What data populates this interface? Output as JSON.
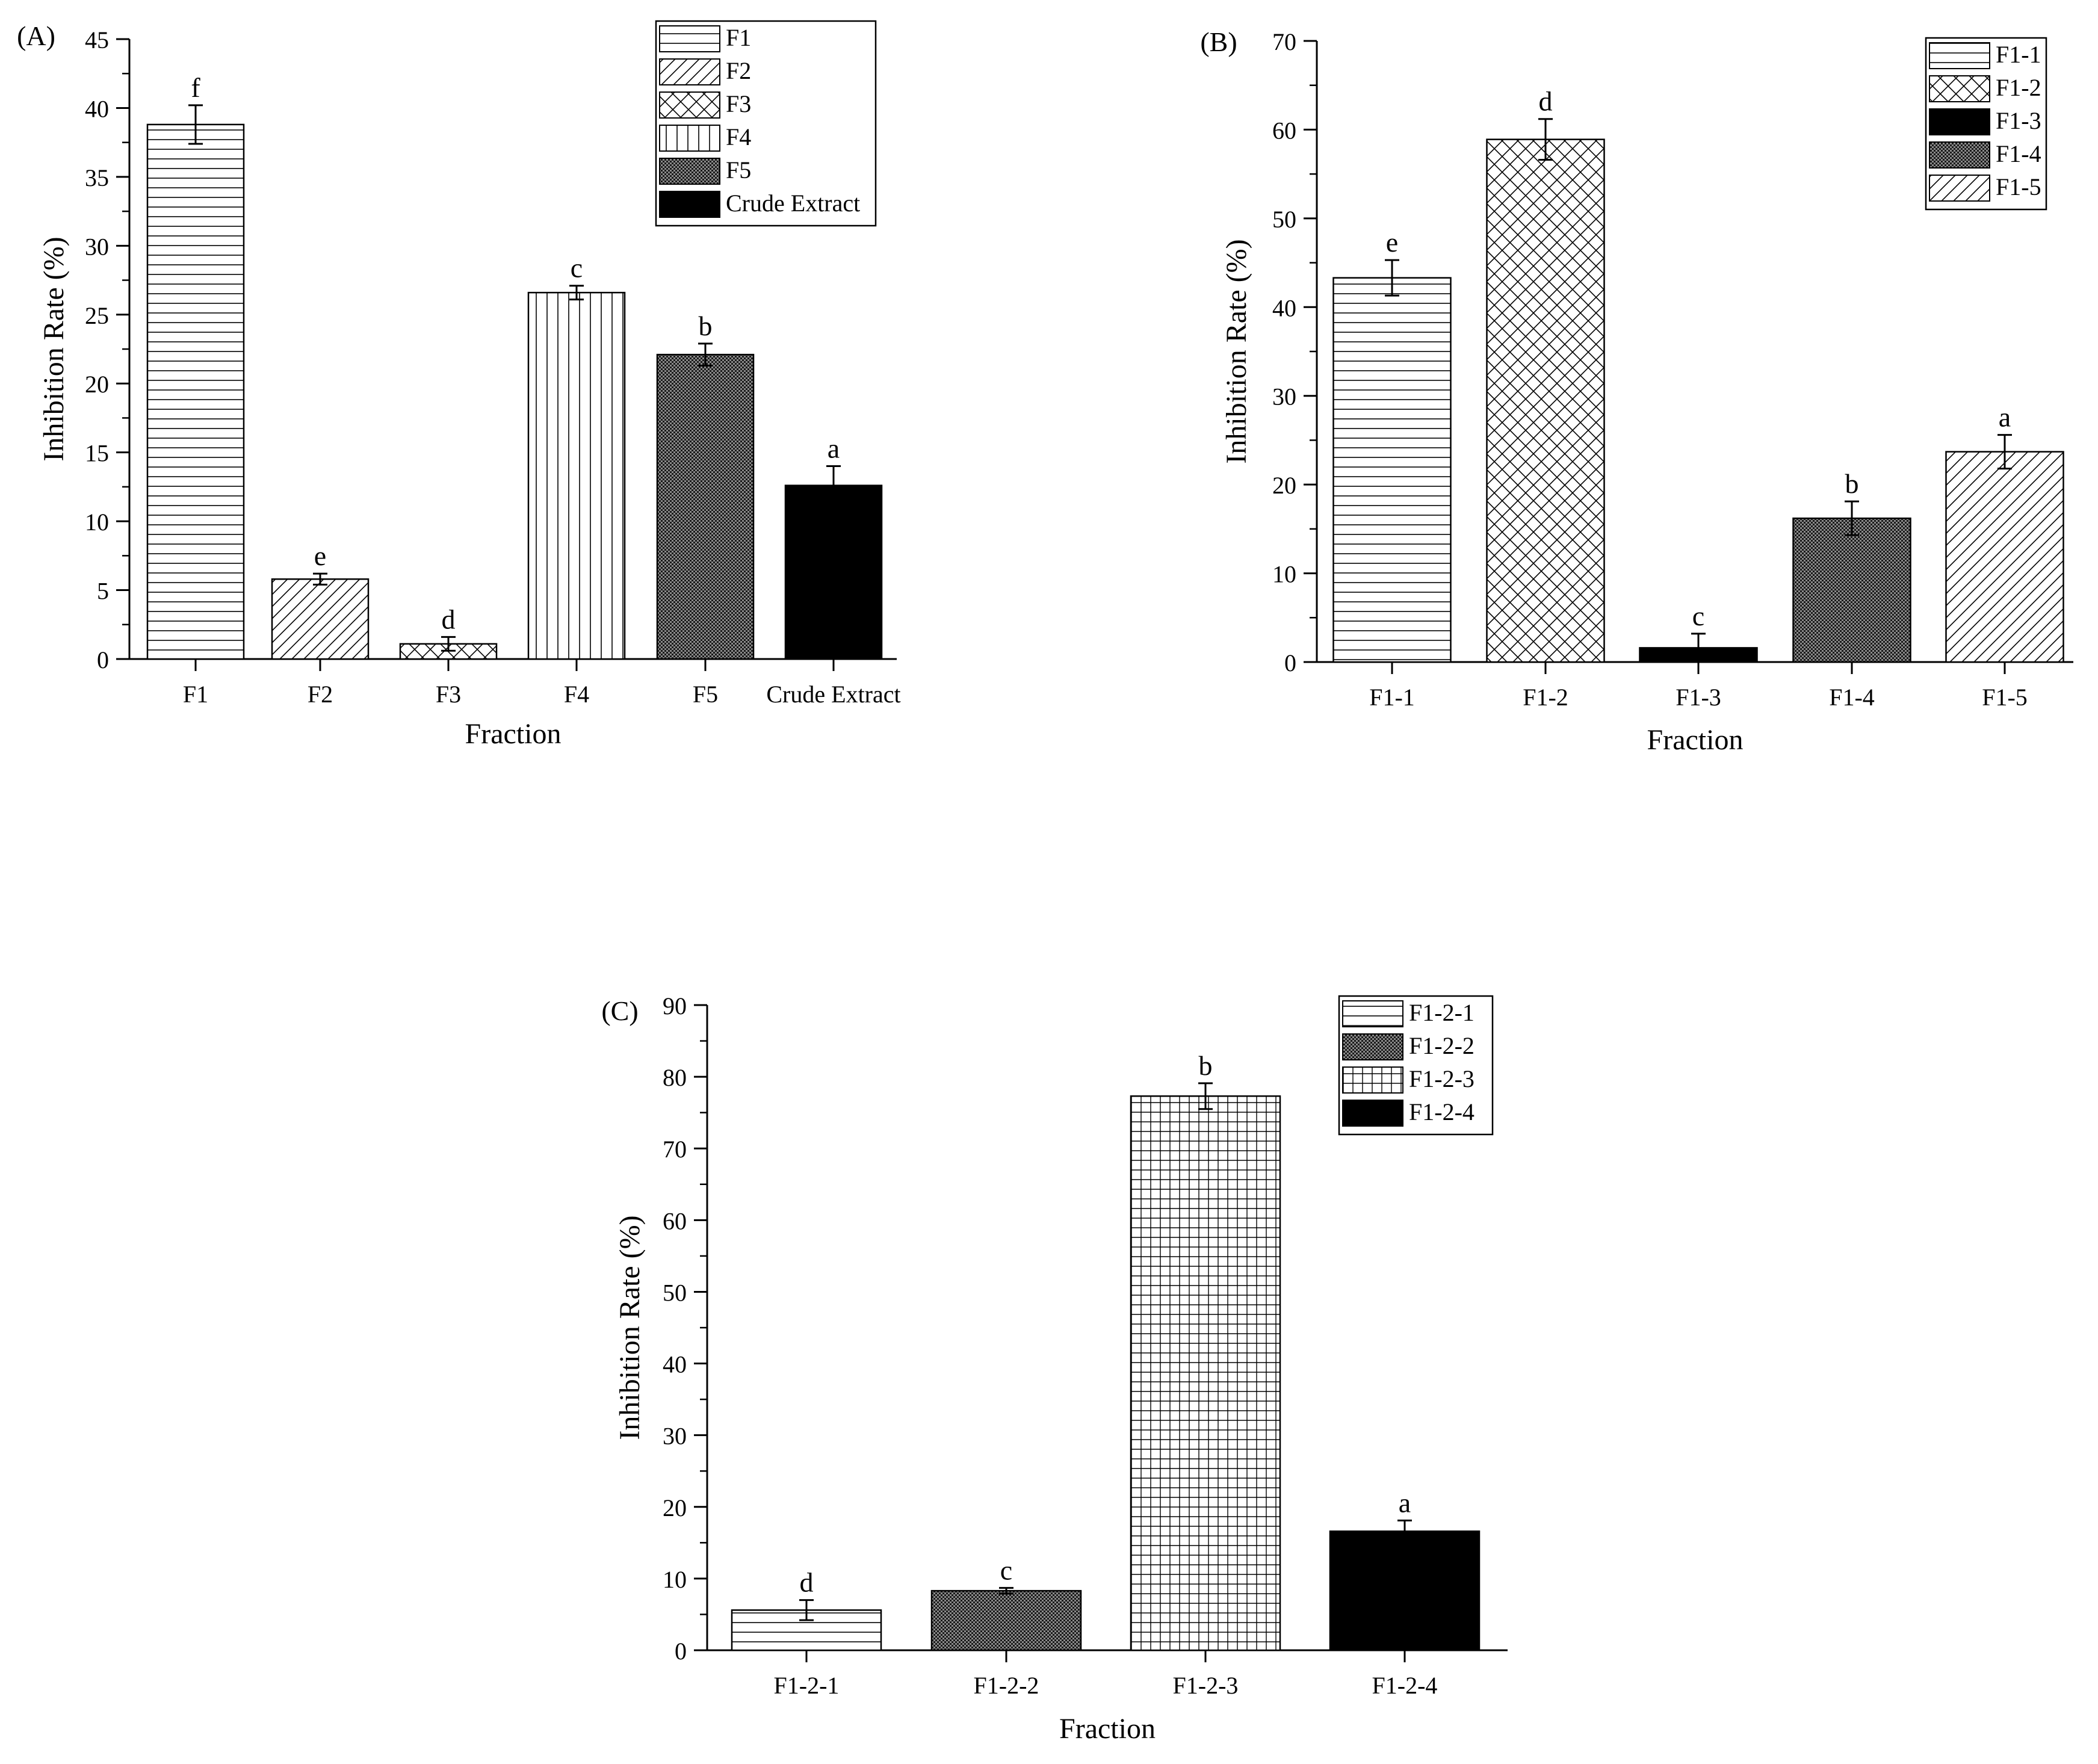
{
  "chart_data": [
    {
      "type": "bar",
      "panel_label": "(A)",
      "xlabel": "Fraction",
      "ylabel": "Inhibition Rate (%)",
      "ylim": [
        0,
        45
      ],
      "yticks": [
        "0",
        "5",
        "10",
        "15",
        "20",
        "25",
        "30",
        "35",
        "40",
        "45"
      ],
      "categories": [
        "F1",
        "F2",
        "F3",
        "F4",
        "F5",
        "Crude Extract"
      ],
      "values": [
        38.8,
        5.8,
        1.1,
        26.6,
        22.1,
        12.6
      ],
      "errors": [
        1.4,
        0.4,
        0.5,
        0.5,
        0.8,
        1.4
      ],
      "sig_letters": [
        "f",
        "e",
        "d",
        "c",
        "b",
        "a"
      ],
      "patterns": [
        "hlines",
        "diag",
        "cross",
        "vlines",
        "dots",
        "solid"
      ],
      "legend": [
        "F1",
        "F2",
        "F3",
        "F4",
        "F5",
        "Crude Extract"
      ],
      "legend_position": "top-right"
    },
    {
      "type": "bar",
      "panel_label": "(B)",
      "xlabel": "Fraction",
      "ylabel": "Inhibition Rate (%)",
      "ylim": [
        0,
        70
      ],
      "yticks": [
        "0",
        "10",
        "20",
        "30",
        "40",
        "50",
        "60",
        "70"
      ],
      "categories": [
        "F1-1",
        "F1-2",
        "F1-3",
        "F1-4",
        "F1-5"
      ],
      "values": [
        43.3,
        58.9,
        1.6,
        16.2,
        23.7
      ],
      "errors": [
        2.0,
        2.3,
        1.6,
        1.9,
        1.9
      ],
      "sig_letters": [
        "e",
        "d",
        "c",
        "b",
        "a"
      ],
      "patterns": [
        "hlines",
        "cross",
        "solid",
        "dots",
        "diag"
      ],
      "legend": [
        "F1-1",
        "F1-2",
        "F1-3",
        "F1-4",
        "F1-5"
      ],
      "legend_position": "top-right"
    },
    {
      "type": "bar",
      "panel_label": "(C)",
      "xlabel": "Fraction",
      "ylabel": "Inhibition Rate (%)",
      "ylim": [
        0,
        90
      ],
      "yticks": [
        "0",
        "10",
        "20",
        "30",
        "40",
        "50",
        "60",
        "70",
        "80",
        "90"
      ],
      "categories": [
        "F1-2-1",
        "F1-2-2",
        "F1-2-3",
        "F1-2-4"
      ],
      "values": [
        5.6,
        8.3,
        77.3,
        16.6
      ],
      "errors": [
        1.4,
        0.4,
        1.8,
        1.5
      ],
      "sig_letters": [
        "d",
        "c",
        "b",
        "a"
      ],
      "patterns": [
        "hlines",
        "dots",
        "grid",
        "solid"
      ],
      "legend": [
        "F1-2-1",
        "F1-2-2",
        "F1-2-3",
        "F1-2-4"
      ],
      "legend_position": "top-right"
    }
  ]
}
